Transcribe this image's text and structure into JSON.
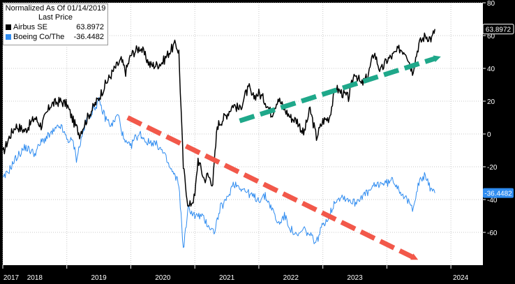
{
  "legend": {
    "title": "Normalized As Of 01/14/2019",
    "subtitle": "Last Price"
  },
  "colors": {
    "background": "#ffffff",
    "grid": "#c8c8c8",
    "airbus": "#000000",
    "boeing": "#2f8cf0",
    "up_arrow": "#1fa88a",
    "down_arrow": "#f2584a",
    "axis_panel": "#000000"
  },
  "chart_data": {
    "type": "line",
    "x_axis_labels": [
      "2017",
      "2018",
      "2019",
      "2020",
      "2021",
      "2022",
      "2023",
      "2024"
    ],
    "ylim": [
      -80,
      80
    ],
    "yticks": [
      80,
      60,
      40,
      20,
      0,
      -20,
      -40,
      -60
    ],
    "grid": true,
    "legend_position": "top-left",
    "series": [
      {
        "name": "Airbus SE",
        "last_value": "63.8972",
        "x": [
          2017.0,
          2017.1,
          2017.2,
          2017.35,
          2017.5,
          2017.6,
          2017.75,
          2017.9,
          2018.0,
          2018.1,
          2018.2,
          2018.35,
          2018.5,
          2018.6,
          2018.75,
          2018.85,
          2018.92,
          2019.0,
          2019.05,
          2019.15,
          2019.3,
          2019.4,
          2019.5,
          2019.6,
          2019.7,
          2019.75,
          2019.82,
          2019.9,
          2020.0,
          2020.05,
          2020.1,
          2020.15,
          2020.2,
          2020.28,
          2020.35,
          2020.5,
          2020.6,
          2020.7,
          2020.8,
          2020.85,
          2020.9,
          2021.0,
          2021.1,
          2021.2,
          2021.3,
          2021.4,
          2021.5,
          2021.6,
          2021.7,
          2021.8,
          2021.9,
          2022.0,
          2022.1,
          2022.2,
          2022.3,
          2022.4,
          2022.5,
          2022.6,
          2022.7,
          2022.8,
          2022.9,
          2023.0,
          2023.1,
          2023.2,
          2023.3,
          2023.4,
          2023.5,
          2023.6,
          2023.7,
          2023.75
        ],
        "y": [
          -12,
          -2,
          5,
          2,
          10,
          5,
          18,
          20,
          18,
          8,
          0,
          12,
          22,
          30,
          40,
          45,
          38,
          48,
          50,
          53,
          42,
          42,
          44,
          50,
          55,
          50,
          -20,
          -45,
          -38,
          -15,
          -22,
          -28,
          -25,
          -30,
          5,
          12,
          18,
          15,
          25,
          28,
          22,
          25,
          20,
          12,
          22,
          15,
          10,
          8,
          0,
          15,
          -2,
          8,
          10,
          28,
          25,
          22,
          38,
          30,
          35,
          50,
          38,
          45,
          48,
          52,
          50,
          38,
          55,
          60,
          58,
          64
        ]
      },
      {
        "name": "Boeing Co/The",
        "last_value": "-36.4482",
        "x": [
          2017.0,
          2017.1,
          2017.2,
          2017.35,
          2017.5,
          2017.6,
          2017.75,
          2017.9,
          2018.0,
          2018.1,
          2018.15,
          2018.3,
          2018.5,
          2018.6,
          2018.7,
          2018.8,
          2018.9,
          2019.0,
          2019.05,
          2019.15,
          2019.25,
          2019.35,
          2019.45,
          2019.55,
          2019.6,
          2019.75,
          2019.82,
          2019.9,
          2020.0,
          2020.1,
          2020.2,
          2020.3,
          2020.4,
          2020.5,
          2020.6,
          2020.7,
          2020.8,
          2020.9,
          2021.0,
          2021.1,
          2021.2,
          2021.3,
          2021.4,
          2021.5,
          2021.6,
          2021.7,
          2021.8,
          2021.9,
          2022.0,
          2022.1,
          2022.2,
          2022.3,
          2022.4,
          2022.5,
          2022.6,
          2022.7,
          2022.8,
          2022.9,
          2023.0,
          2023.1,
          2023.2,
          2023.3,
          2023.4,
          2023.5,
          2023.6,
          2023.7,
          2023.75
        ],
        "y": [
          -28,
          -22,
          -15,
          -8,
          -12,
          -5,
          0,
          5,
          -3,
          -5,
          -15,
          8,
          20,
          10,
          5,
          12,
          -5,
          -8,
          -3,
          0,
          -5,
          -5,
          -8,
          -15,
          -20,
          -30,
          -70,
          -45,
          -50,
          -50,
          -55,
          -60,
          -45,
          -40,
          -30,
          -32,
          -35,
          -38,
          -40,
          -38,
          -45,
          -55,
          -50,
          -58,
          -63,
          -58,
          -62,
          -66,
          -55,
          -50,
          -40,
          -38,
          -40,
          -42,
          -38,
          -36,
          -32,
          -30,
          -30,
          -28,
          -34,
          -40,
          -45,
          -30,
          -25,
          -35,
          -36
        ]
      }
    ],
    "annotations": [
      {
        "label": "up-arrow",
        "color": "#1fa88a",
        "from": [
          2020.7,
          8
        ],
        "to": [
          2023.75,
          46
        ]
      },
      {
        "label": "down-arrow",
        "color": "#f2584a",
        "from": [
          2018.95,
          10
        ],
        "to": [
          2023.4,
          -75
        ]
      }
    ]
  }
}
